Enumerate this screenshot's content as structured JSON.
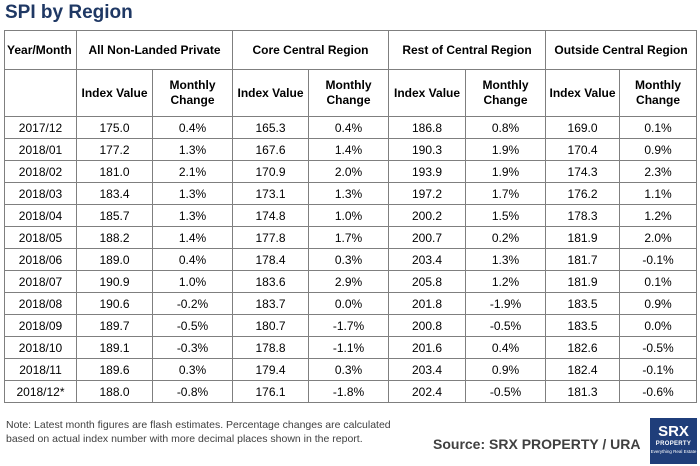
{
  "title": "SPI by Region",
  "table": {
    "year_header": "Year/Month",
    "groups": [
      "All Non-Landed Private",
      "Core Central Region",
      "Rest of Central Region",
      "Outside Central Region"
    ],
    "subheaders": [
      "Index Value",
      "Monthly Change",
      "Index Value",
      "Monthly Change",
      "Index Value",
      "Monthly Change",
      "Index Value",
      "Monthly Change"
    ],
    "rows": [
      [
        "2017/12",
        "175.0",
        "0.4%",
        "165.3",
        "0.4%",
        "186.8",
        "0.8%",
        "169.0",
        "0.1%"
      ],
      [
        "2018/01",
        "177.2",
        "1.3%",
        "167.6",
        "1.4%",
        "190.3",
        "1.9%",
        "170.4",
        "0.9%"
      ],
      [
        "2018/02",
        "181.0",
        "2.1%",
        "170.9",
        "2.0%",
        "193.9",
        "1.9%",
        "174.3",
        "2.3%"
      ],
      [
        "2018/03",
        "183.4",
        "1.3%",
        "173.1",
        "1.3%",
        "197.2",
        "1.7%",
        "176.2",
        "1.1%"
      ],
      [
        "2018/04",
        "185.7",
        "1.3%",
        "174.8",
        "1.0%",
        "200.2",
        "1.5%",
        "178.3",
        "1.2%"
      ],
      [
        "2018/05",
        "188.2",
        "1.4%",
        "177.8",
        "1.7%",
        "200.7",
        "0.2%",
        "181.9",
        "2.0%"
      ],
      [
        "2018/06",
        "189.0",
        "0.4%",
        "178.4",
        "0.3%",
        "203.4",
        "1.3%",
        "181.7",
        "-0.1%"
      ],
      [
        "2018/07",
        "190.9",
        "1.0%",
        "183.6",
        "2.9%",
        "205.8",
        "1.2%",
        "181.9",
        "0.1%"
      ],
      [
        "2018/08",
        "190.6",
        "-0.2%",
        "183.7",
        "0.0%",
        "201.8",
        "-1.9%",
        "183.5",
        "0.9%"
      ],
      [
        "2018/09",
        "189.7",
        "-0.5%",
        "180.7",
        "-1.7%",
        "200.8",
        "-0.5%",
        "183.5",
        "0.0%"
      ],
      [
        "2018/10",
        "189.1",
        "-0.3%",
        "178.8",
        "-1.1%",
        "201.6",
        "0.4%",
        "182.6",
        "-0.5%"
      ],
      [
        "2018/11",
        "189.6",
        "0.3%",
        "179.4",
        "0.3%",
        "203.4",
        "0.9%",
        "182.4",
        "-0.1%"
      ],
      [
        "2018/12*",
        "188.0",
        "-0.8%",
        "176.1",
        "-1.8%",
        "202.4",
        "-0.5%",
        "181.3",
        "-0.6%"
      ]
    ]
  },
  "note": "Note: Latest month figures are flash estimates. Percentage changes are calculated based on actual index number with more decimal places shown in the report.",
  "source": "Source:  SRX PROPERTY / URA",
  "logo": {
    "line1": "SRX",
    "line2": "PROPERTY",
    "line3": "Everything Real Estate"
  },
  "colors": {
    "title": "#1f3864",
    "logo_bg": "#1f3e7a",
    "grid": "#7f7f7f"
  }
}
